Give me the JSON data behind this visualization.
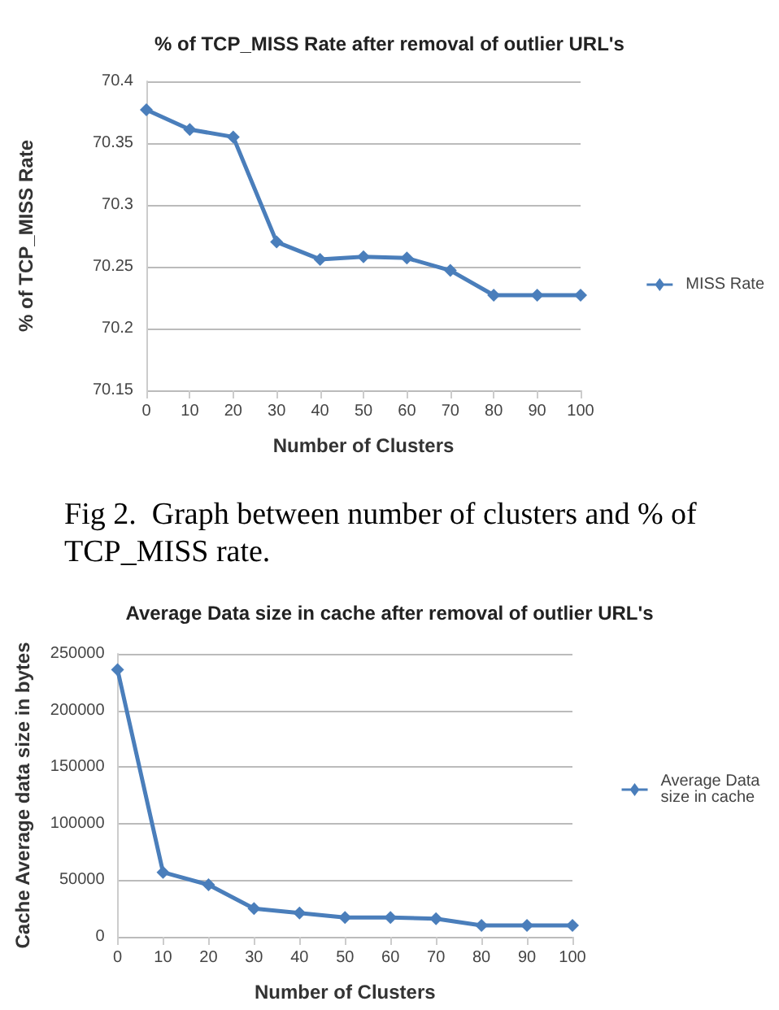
{
  "chart_data": [
    {
      "type": "line",
      "title": "% of TCP_MISS Rate after removal of outlier URL's",
      "xlabel": "Number of Clusters",
      "ylabel": "% of TCP_MISS Rate",
      "categories": [
        "0",
        "10",
        "20",
        "30",
        "40",
        "50",
        "60",
        "70",
        "80",
        "90",
        "100"
      ],
      "series": [
        {
          "name": "MISS Rate",
          "color": "#4a7ebb",
          "values": [
            70.377,
            70.361,
            70.355,
            70.27,
            70.256,
            70.258,
            70.257,
            70.247,
            70.227,
            70.227,
            70.227
          ]
        }
      ],
      "ylim": [
        70.15,
        70.4
      ],
      "yticks": [
        70.15,
        70.2,
        70.25,
        70.3,
        70.35,
        70.4
      ],
      "grid": true,
      "legend": "right",
      "marker": "diamond",
      "line_style": "solid",
      "annotations": [
        "Fig 2.  Graph between number of clusters and % of TCP_MISS rate."
      ]
    },
    {
      "type": "line",
      "title": "Average Data size in cache after removal of outlier URL's",
      "xlabel": "Number of Clusters",
      "ylabel": "Cache Average data size in bytes",
      "categories": [
        "0",
        "10",
        "20",
        "30",
        "40",
        "50",
        "60",
        "70",
        "80",
        "90",
        "100"
      ],
      "series": [
        {
          "name": "Average Data size in cache",
          "color": "#4a7ebb",
          "values": [
            236000,
            57000,
            46000,
            25000,
            21000,
            17000,
            17000,
            16000,
            10000,
            10000,
            10000
          ]
        }
      ],
      "ylim": [
        0,
        250000
      ],
      "yticks": [
        0,
        50000,
        100000,
        150000,
        200000,
        250000
      ],
      "grid": true,
      "legend": "right",
      "marker": "diamond",
      "line_style": "solid"
    }
  ]
}
